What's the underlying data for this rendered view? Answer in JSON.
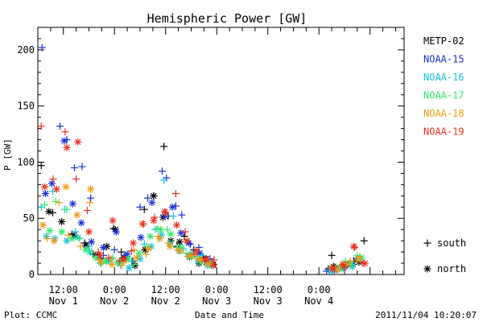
{
  "chart_data": {
    "type": "scatter",
    "title": "Hemispheric Power [GW]",
    "ylabel": "P [GW]",
    "xlabel": "Date and Time",
    "ylim": [
      0,
      220
    ],
    "yticks": [
      0,
      50,
      100,
      150,
      200
    ],
    "xlim": [
      6,
      92
    ],
    "xticks": [
      {
        "h": 12,
        "top": "12:00",
        "bottom": "Nov 1"
      },
      {
        "h": 24,
        "top": "0:00",
        "bottom": "Nov 2"
      },
      {
        "h": 36,
        "top": "12:00",
        "bottom": "Nov 2"
      },
      {
        "h": 48,
        "top": "0:00",
        "bottom": "Nov 3"
      },
      {
        "h": 60,
        "top": "12:00",
        "bottom": "Nov 3"
      },
      {
        "h": 72,
        "top": "0:00",
        "bottom": "Nov 4"
      }
    ],
    "x_units": "hours since 2011-11-01 00:00 UT",
    "grid": false,
    "legend_position": "right",
    "markers": {
      "south": "+",
      "north": "*"
    },
    "marker_legend": [
      {
        "symbol": "+",
        "label": "south"
      },
      {
        "symbol": "*",
        "label": "north"
      }
    ],
    "series": [
      {
        "name": "METP-02",
        "color": "#000000",
        "south": [
          [
            6.8,
            97
          ],
          [
            9.5,
            55
          ],
          [
            14,
            36
          ],
          [
            17,
            28
          ],
          [
            19,
            18
          ],
          [
            20.8,
            14
          ],
          [
            23.8,
            41
          ],
          [
            25.6,
            20
          ],
          [
            28.3,
            12
          ],
          [
            31,
            58
          ],
          [
            33.2,
            70
          ],
          [
            35.6,
            114
          ],
          [
            36.6,
            52
          ],
          [
            38.6,
            25
          ],
          [
            40.4,
            34
          ],
          [
            42.6,
            22
          ],
          [
            44.8,
            15
          ],
          [
            46.8,
            10
          ],
          [
            74.2,
            5
          ],
          [
            75,
            17
          ],
          [
            77.6,
            8
          ],
          [
            80.2,
            12
          ],
          [
            82.6,
            30
          ]
        ],
        "north": [
          [
            8.6,
            56
          ],
          [
            11.6,
            47
          ],
          [
            14.5,
            35
          ],
          [
            17.3,
            26
          ],
          [
            20,
            17
          ],
          [
            22.2,
            25
          ],
          [
            24.2,
            40
          ],
          [
            26.2,
            15
          ],
          [
            28.8,
            8
          ],
          [
            31.2,
            22
          ],
          [
            33.2,
            70
          ],
          [
            35.4,
            51
          ],
          [
            37.2,
            30
          ],
          [
            39.3,
            29
          ],
          [
            41.6,
            16
          ],
          [
            43.8,
            10
          ],
          [
            45.4,
            14
          ],
          [
            47.2,
            9
          ],
          [
            75.4,
            7
          ],
          [
            78.8,
            9
          ],
          [
            81.4,
            11
          ]
        ]
      },
      {
        "name": "NOAA-15",
        "color": "#1a2fd6",
        "south": [
          [
            7,
            202
          ],
          [
            11.2,
            132
          ],
          [
            12.8,
            120
          ],
          [
            14.6,
            95
          ],
          [
            16.4,
            96
          ],
          [
            18.4,
            68
          ],
          [
            21.4,
            17
          ],
          [
            24,
            22
          ],
          [
            26.4,
            17
          ],
          [
            30,
            60
          ],
          [
            31.8,
            68
          ],
          [
            35.2,
            92
          ],
          [
            36.2,
            86
          ],
          [
            38.4,
            61
          ],
          [
            39.8,
            53
          ],
          [
            41.8,
            27
          ],
          [
            43.8,
            24
          ],
          [
            46.4,
            14
          ],
          [
            73.8,
            3
          ],
          [
            76.2,
            5
          ],
          [
            78.6,
            8
          ],
          [
            80.8,
            14
          ]
        ],
        "north": [
          [
            7.8,
            72
          ],
          [
            9.3,
            81
          ],
          [
            12.2,
            119
          ],
          [
            14.2,
            63
          ],
          [
            16.2,
            46
          ],
          [
            18.6,
            29
          ],
          [
            21.4,
            24
          ],
          [
            24.4,
            38
          ],
          [
            27,
            18
          ],
          [
            30.2,
            33
          ],
          [
            32.8,
            64
          ],
          [
            35.8,
            52
          ],
          [
            37.6,
            60
          ],
          [
            39.6,
            37
          ],
          [
            41.4,
            28
          ],
          [
            44,
            19
          ],
          [
            46.2,
            11
          ],
          [
            75.6,
            4
          ],
          [
            77.8,
            6
          ],
          [
            80,
            9
          ]
        ]
      },
      {
        "name": "NOAA-16",
        "color": "#12c6de",
        "south": [
          [
            6.8,
            60
          ],
          [
            9.5,
            74
          ],
          [
            12.3,
            58
          ],
          [
            14.8,
            38
          ],
          [
            18,
            25
          ],
          [
            20.6,
            10
          ],
          [
            23,
            13
          ],
          [
            25.4,
            8
          ],
          [
            28,
            12
          ],
          [
            31,
            27
          ],
          [
            33.6,
            40
          ],
          [
            35.6,
            84
          ],
          [
            37.8,
            52
          ],
          [
            40.2,
            23
          ],
          [
            42.2,
            20
          ],
          [
            44.6,
            17
          ],
          [
            46.6,
            10
          ],
          [
            74.4,
            4
          ],
          [
            76.8,
            6
          ],
          [
            79.2,
            10
          ],
          [
            81.6,
            14
          ]
        ],
        "north": [
          [
            8,
            34
          ],
          [
            10,
            32
          ],
          [
            12.8,
            30
          ],
          [
            15.4,
            33
          ],
          [
            18.2,
            20
          ],
          [
            20.2,
            15
          ],
          [
            22.2,
            12
          ],
          [
            25,
            10
          ],
          [
            27.4,
            6
          ],
          [
            30,
            14
          ],
          [
            32.6,
            25
          ],
          [
            35,
            35
          ],
          [
            37,
            28
          ],
          [
            39.2,
            21
          ],
          [
            41.6,
            17
          ],
          [
            43.6,
            12
          ],
          [
            45.8,
            8
          ],
          [
            75,
            3
          ],
          [
            77.4,
            5
          ],
          [
            79.8,
            7
          ]
        ]
      },
      {
        "name": "NOAA-17",
        "color": "#2fe86b",
        "south": [
          [
            7.6,
            62
          ],
          [
            10.2,
            65
          ],
          [
            12.8,
            58
          ],
          [
            15.8,
            32
          ],
          [
            18.6,
            20
          ],
          [
            21,
            10
          ],
          [
            23.6,
            15
          ],
          [
            26,
            11
          ],
          [
            28.6,
            9
          ],
          [
            31.6,
            25
          ],
          [
            34,
            41
          ],
          [
            36.4,
            40
          ],
          [
            38.6,
            24
          ],
          [
            40.8,
            19
          ],
          [
            43.2,
            16
          ],
          [
            45.6,
            12
          ],
          [
            76,
            7
          ],
          [
            78.2,
            12
          ],
          [
            81,
            17
          ]
        ],
        "north": [
          [
            8.8,
            39
          ],
          [
            11.6,
            38
          ],
          [
            14,
            32
          ],
          [
            17.2,
            22
          ],
          [
            19.6,
            15
          ],
          [
            22,
            12
          ],
          [
            24.8,
            11
          ],
          [
            27.2,
            14
          ],
          [
            29.8,
            19
          ],
          [
            32.4,
            34
          ],
          [
            34.8,
            40
          ],
          [
            37.2,
            36
          ],
          [
            39.6,
            24
          ],
          [
            42,
            16
          ],
          [
            44.4,
            11
          ],
          [
            46.8,
            8
          ],
          [
            77,
            6
          ],
          [
            79.6,
            9
          ],
          [
            82,
            15
          ]
        ]
      },
      {
        "name": "NOAA-18",
        "color": "#f09a14",
        "south": [
          [
            8.2,
            32
          ],
          [
            11,
            64
          ],
          [
            13.2,
            35
          ],
          [
            16,
            25
          ],
          [
            18.2,
            64
          ],
          [
            20.4,
            13
          ],
          [
            23.2,
            14
          ],
          [
            25.8,
            8
          ],
          [
            28.6,
            22
          ],
          [
            31.4,
            18
          ],
          [
            34.2,
            34
          ],
          [
            36.6,
            28
          ],
          [
            38.8,
            22
          ],
          [
            41.2,
            16
          ],
          [
            43.6,
            14
          ],
          [
            45.8,
            9
          ],
          [
            74.8,
            6
          ],
          [
            77.2,
            8
          ],
          [
            79.4,
            12
          ],
          [
            81.6,
            16
          ]
        ],
        "north": [
          [
            7.2,
            44
          ],
          [
            9.8,
            30
          ],
          [
            12.6,
            78
          ],
          [
            15.2,
            53
          ],
          [
            18.4,
            76
          ],
          [
            20.8,
            11
          ],
          [
            23.4,
            9
          ],
          [
            26.2,
            12
          ],
          [
            29.2,
            15
          ],
          [
            32,
            23
          ],
          [
            34.6,
            32
          ],
          [
            37,
            25
          ],
          [
            39.4,
            21
          ],
          [
            41.8,
            17
          ],
          [
            44.2,
            13
          ],
          [
            46.4,
            10
          ],
          [
            76.4,
            4
          ],
          [
            78.6,
            9
          ],
          [
            81.2,
            13
          ]
        ]
      },
      {
        "name": "NOAA-19",
        "color": "#e83222",
        "south": [
          [
            6.8,
            132
          ],
          [
            9.6,
            85
          ],
          [
            12.4,
            127
          ],
          [
            15,
            85
          ],
          [
            17.6,
            57
          ],
          [
            20.2,
            20
          ],
          [
            22.6,
            15
          ],
          [
            25.2,
            12
          ],
          [
            28,
            21
          ],
          [
            30.8,
            45
          ],
          [
            33.4,
            51
          ],
          [
            36,
            55
          ],
          [
            38.4,
            72
          ],
          [
            40.6,
            38
          ],
          [
            42.8,
            18
          ],
          [
            45.2,
            12
          ],
          [
            47.4,
            13
          ],
          [
            75.6,
            7
          ],
          [
            78,
            6
          ],
          [
            80.4,
            24
          ],
          [
            82.4,
            10
          ]
        ],
        "north": [
          [
            7.6,
            78
          ],
          [
            10.4,
            76
          ],
          [
            12.8,
            113
          ],
          [
            15.4,
            118
          ],
          [
            18,
            38
          ],
          [
            20.6,
            17
          ],
          [
            23.6,
            48
          ],
          [
            26.2,
            14
          ],
          [
            28.4,
            28
          ],
          [
            30.6,
            45
          ],
          [
            33.2,
            48
          ],
          [
            35.8,
            56
          ],
          [
            38.6,
            44
          ],
          [
            41,
            30
          ],
          [
            43.2,
            21
          ],
          [
            45.6,
            14
          ],
          [
            47.2,
            8
          ],
          [
            75.2,
            5
          ],
          [
            77.6,
            9
          ],
          [
            80.2,
            25
          ],
          [
            82.8,
            10
          ]
        ]
      }
    ]
  },
  "footer": {
    "plot_credit": "Plot: CCMC",
    "xlabel": "Date and Time",
    "timestamp": "2011/11/04 10:20:07"
  }
}
